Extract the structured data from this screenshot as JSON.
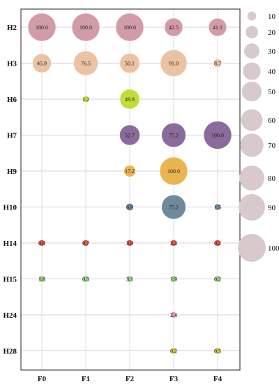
{
  "chart_data": {
    "type": "scatter",
    "subtype": "bubble",
    "title": "",
    "xlabel": "",
    "ylabel": "",
    "x_categories": [
      "F0",
      "F1",
      "F2",
      "F3",
      "F4"
    ],
    "y_categories": [
      "H2",
      "H3",
      "H6",
      "H7",
      "H9",
      "H10",
      "H14",
      "H15",
      "H24",
      "H28"
    ],
    "grid": true,
    "legend": {
      "placement": "right",
      "sizes": [
        10,
        20,
        30,
        40,
        50,
        60,
        70,
        80,
        90,
        100
      ],
      "color": "#d7c9cc"
    },
    "series": [
      {
        "row": "H2",
        "color": "#d19ca5",
        "points": [
          {
            "x": "F0",
            "value": 100.0,
            "label": "100.0"
          },
          {
            "x": "F1",
            "value": 100.0,
            "label": "100.0"
          },
          {
            "x": "F2",
            "value": 100.0,
            "label": "100.0"
          },
          {
            "x": "F3",
            "value": 42.5,
            "label": "42.5"
          },
          {
            "x": "F4",
            "value": 41.1,
            "label": "41.1"
          }
        ]
      },
      {
        "row": "H3",
        "color": "#ebc3a3",
        "points": [
          {
            "x": "F0",
            "value": 45.9,
            "label": "45.9"
          },
          {
            "x": "F1",
            "value": 76.5,
            "label": "76.5"
          },
          {
            "x": "F2",
            "value": 50.1,
            "label": "50.1"
          },
          {
            "x": "F3",
            "value": 91.0,
            "label": "91.0"
          },
          {
            "x": "F4",
            "value": 8.7,
            "label": "8.7"
          }
        ]
      },
      {
        "row": "H6",
        "color": "#c4dc3a",
        "points": [
          {
            "x": "F1",
            "value": 1.2,
            "label": "1.2"
          },
          {
            "x": "F2",
            "value": 49.8,
            "label": "49.8"
          }
        ]
      },
      {
        "row": "H7",
        "color": "#8b6a9c",
        "points": [
          {
            "x": "F2",
            "value": 52.7,
            "label": "52.7"
          },
          {
            "x": "F3",
            "value": 75.2,
            "label": "75.2"
          },
          {
            "x": "F4",
            "value": 100.0,
            "label": "100.0"
          }
        ]
      },
      {
        "row": "H9",
        "color": "#ebb450",
        "points": [
          {
            "x": "F2",
            "value": 17.2,
            "label": "17.2"
          },
          {
            "x": "F3",
            "value": 100.0,
            "label": "100.0"
          }
        ]
      },
      {
        "row": "H10",
        "color": "#6f8a9c",
        "points": [
          {
            "x": "F2",
            "value": 6.9,
            "label": "6.9"
          },
          {
            "x": "F3",
            "value": 75.2,
            "label": "75.2"
          },
          {
            "x": "F4",
            "value": 1.5,
            "label": "1.5"
          }
        ]
      },
      {
        "row": "H14",
        "color": "#e0574a",
        "points": [
          {
            "x": "F0",
            "value": 0.0,
            "label": "0.0"
          },
          {
            "x": "F1",
            "value": 0.7,
            "label": "0.7"
          },
          {
            "x": "F2",
            "value": 3.9,
            "label": "3.9"
          },
          {
            "x": "F3",
            "value": 2.3,
            "label": "2.3"
          },
          {
            "x": "F4",
            "value": 0.2,
            "label": "0.2"
          }
        ]
      },
      {
        "row": "H15",
        "color": "#8ed07c",
        "points": [
          {
            "x": "F0",
            "value": 1.8,
            "label": "1.8"
          },
          {
            "x": "F1",
            "value": 0.3,
            "label": "0.3"
          },
          {
            "x": "F2",
            "value": 3.1,
            "label": "3.1"
          },
          {
            "x": "F3",
            "value": 1.9,
            "label": "1.9"
          },
          {
            "x": "F4",
            "value": 0.2,
            "label": "0.2"
          }
        ]
      },
      {
        "row": "H24",
        "color": "#df97b8",
        "points": [
          {
            "x": "F3",
            "value": 2.4,
            "label": "2.4"
          }
        ]
      },
      {
        "row": "H28",
        "color": "#cfc43a",
        "points": [
          {
            "x": "F3",
            "value": 0.2,
            "label": "0.2"
          },
          {
            "x": "F4",
            "value": 0.5,
            "label": "0.5"
          }
        ]
      }
    ]
  }
}
